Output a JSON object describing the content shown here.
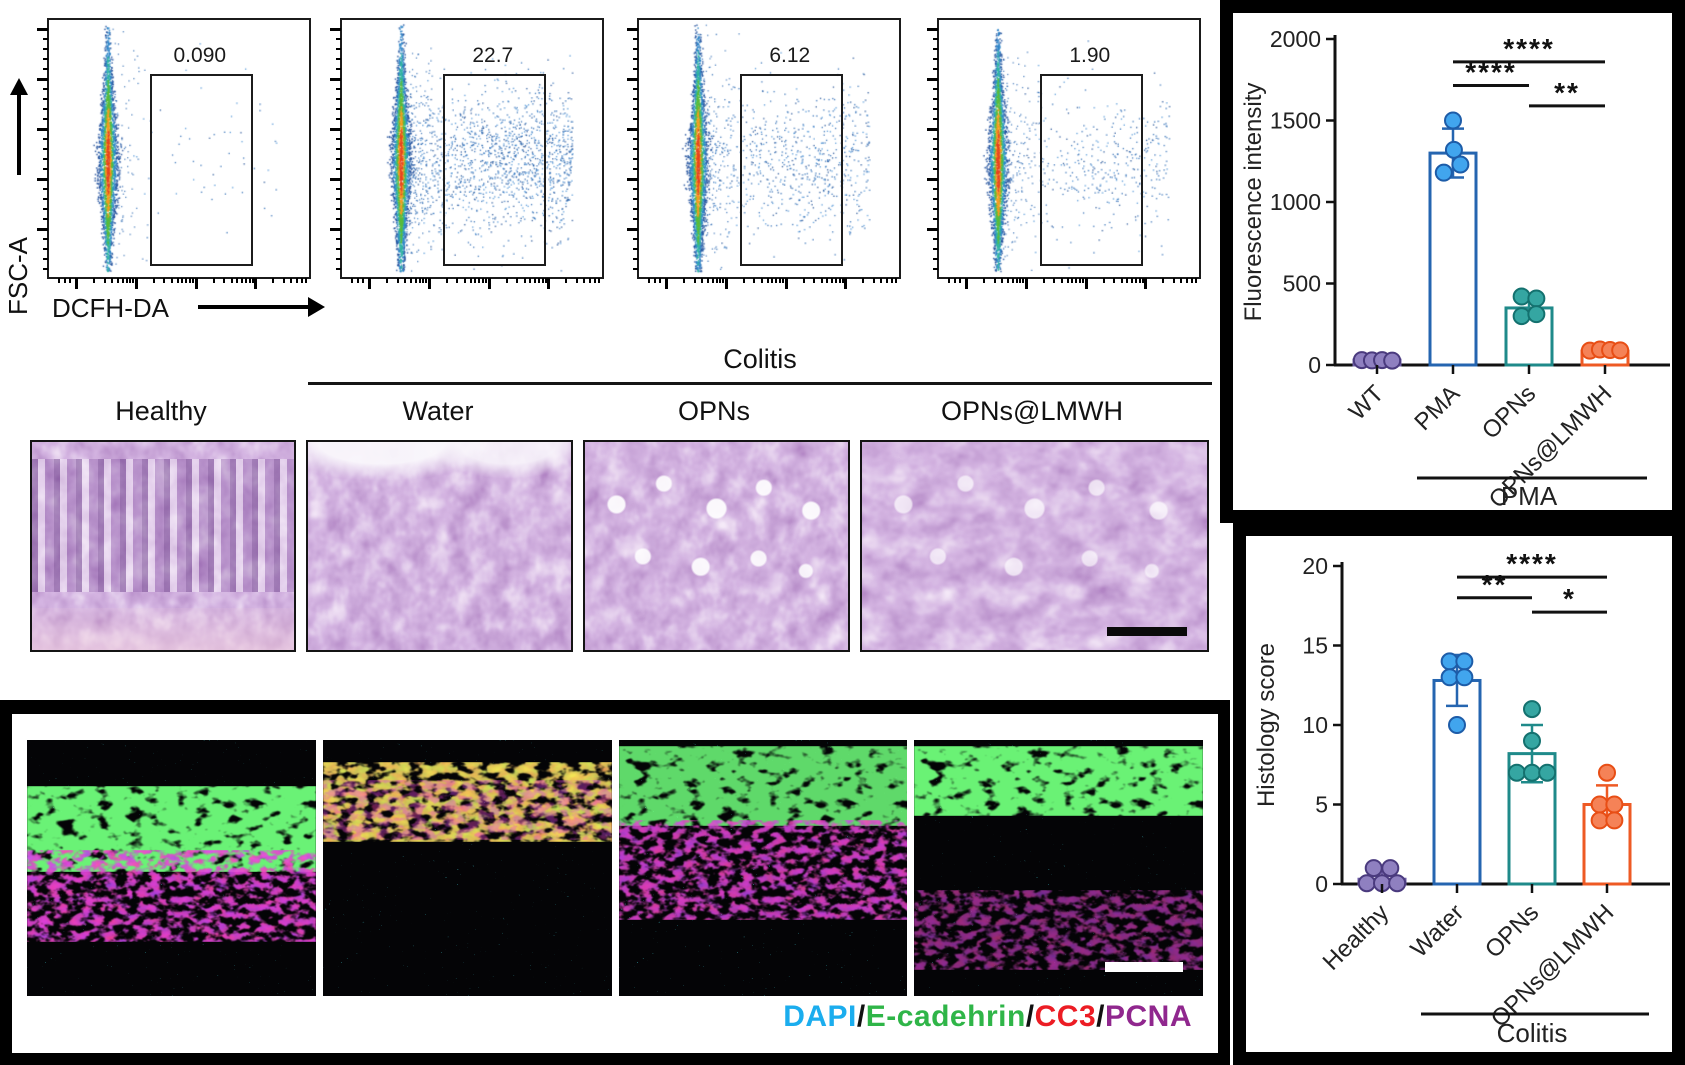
{
  "flow_panel": {
    "y_axis_label": "FSC-A",
    "x_axis_label": "DCFH-DA",
    "plots": [
      {
        "gate_value": "0.090",
        "spread": 0.04
      },
      {
        "gate_value": "22.7",
        "spread": 1.0
      },
      {
        "gate_value": "6.12",
        "spread": 0.5
      },
      {
        "gate_value": "1.90",
        "spread": 0.28
      }
    ]
  },
  "histology_panel": {
    "group_label": "Colitis",
    "columns": [
      "Healthy",
      "Water",
      "OPNs",
      "OPNs@LMWH"
    ]
  },
  "if_panel": {
    "separator": "/",
    "legend": [
      {
        "label": "DAPI",
        "color": "#1badee"
      },
      {
        "label": "E-cadehrin",
        "color": "#2fb548"
      },
      {
        "label": "CC3",
        "color": "#ec1c24"
      },
      {
        "label": "PCNA",
        "color": "#90278e"
      }
    ]
  },
  "chart_data": [
    {
      "type": "bar",
      "title": "",
      "ylabel": "Fluorescence intensity",
      "xlabel": "",
      "ylim": [
        0,
        2000
      ],
      "yticks": [
        0,
        500,
        1000,
        1500,
        2000
      ],
      "grid": false,
      "legend_position": "none",
      "categories": [
        "WT",
        "PMA",
        "OPNs",
        "OPNs@LMWH"
      ],
      "means": [
        30,
        1300,
        350,
        85
      ],
      "errors": [
        12,
        150,
        60,
        20
      ],
      "points": [
        [
          [
            -0.33,
            30
          ],
          [
            -0.11,
            28
          ],
          [
            0.11,
            30
          ],
          [
            0.33,
            27
          ]
        ],
        [
          [
            0,
            1500
          ],
          [
            0.02,
            1320
          ],
          [
            -0.2,
            1180
          ],
          [
            0.16,
            1230
          ]
        ],
        [
          [
            -0.16,
            420
          ],
          [
            0.16,
            408
          ],
          [
            -0.16,
            300
          ],
          [
            0.16,
            312
          ]
        ],
        [
          [
            -0.33,
            88
          ],
          [
            -0.11,
            95
          ],
          [
            0.11,
            92
          ],
          [
            0.33,
            90
          ]
        ]
      ],
      "colors": [
        {
          "bar": "#6f5fa6",
          "fill": "#8f80c0",
          "edge": "#4a3a7e"
        },
        {
          "bar": "#2565b0",
          "fill": "#41a5ee",
          "edge": "#1d5ca8"
        },
        {
          "bar": "#1f8a8a",
          "fill": "#35a6a2",
          "edge": "#14716f"
        },
        {
          "bar": "#ee5a24",
          "fill": "#f58257",
          "edge": "#e84e15"
        }
      ],
      "significance": [
        {
          "from": 1,
          "to": 3,
          "label": "****",
          "y": 1860
        },
        {
          "from": 1,
          "to": 2,
          "label": "****",
          "y": 1715
        },
        {
          "from": 2,
          "to": 3,
          "label": "**",
          "y": 1590
        }
      ],
      "group_line": {
        "from": 1,
        "to": 3,
        "label": "PMA"
      }
    },
    {
      "type": "bar",
      "title": "",
      "ylabel": "Histology score",
      "xlabel": "",
      "ylim": [
        0,
        20
      ],
      "yticks": [
        0,
        5,
        10,
        15,
        20
      ],
      "grid": false,
      "legend_position": "none",
      "categories": [
        "Healthy",
        "Water",
        "OPNs",
        "OPNs@LMWH"
      ],
      "means": [
        0.3,
        12.8,
        8.2,
        5.0
      ],
      "errors": [
        0.6,
        1.6,
        1.8,
        1.2
      ],
      "points": [
        [
          [
            -0.18,
            1
          ],
          [
            0.18,
            1
          ],
          [
            -0.33,
            0.05
          ],
          [
            0,
            0.05
          ],
          [
            0.33,
            0.05
          ]
        ],
        [
          [
            -0.16,
            14
          ],
          [
            0.16,
            14
          ],
          [
            -0.16,
            13
          ],
          [
            0.16,
            13
          ],
          [
            0,
            10
          ]
        ],
        [
          [
            0,
            11
          ],
          [
            0,
            9
          ],
          [
            -0.33,
            7
          ],
          [
            0,
            7
          ],
          [
            0.33,
            7
          ]
        ],
        [
          [
            0,
            7
          ],
          [
            -0.16,
            5
          ],
          [
            0.16,
            5
          ],
          [
            -0.16,
            4
          ],
          [
            0.16,
            4
          ]
        ]
      ],
      "colors": [
        {
          "bar": "#6f5fa6",
          "fill": "#8f80c0",
          "edge": "#4a3a7e"
        },
        {
          "bar": "#2565b0",
          "fill": "#41a5ee",
          "edge": "#1d5ca8"
        },
        {
          "bar": "#1f8a8a",
          "fill": "#35a6a2",
          "edge": "#14716f"
        },
        {
          "bar": "#ee5a24",
          "fill": "#f58257",
          "edge": "#e84e15"
        }
      ],
      "significance": [
        {
          "from": 1,
          "to": 3,
          "label": "****",
          "y": 19.3
        },
        {
          "from": 1,
          "to": 2,
          "label": "**",
          "y": 18.0
        },
        {
          "from": 2,
          "to": 3,
          "label": "*",
          "y": 17.1
        }
      ],
      "group_line": {
        "from": 1,
        "to": 3,
        "label": "Colitis"
      }
    }
  ]
}
